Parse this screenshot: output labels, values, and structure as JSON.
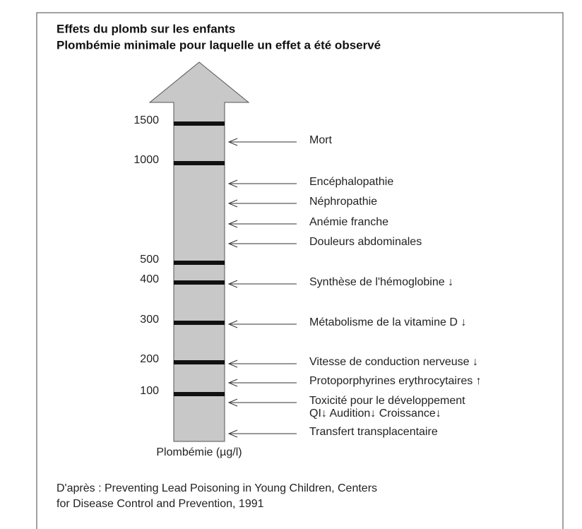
{
  "title": "Effets du plomb sur les enfants",
  "subtitle": "Plombémie minimale pour laquelle un effet a été observé",
  "scale_ticks": [
    1500,
    1000,
    500,
    400,
    300,
    200,
    100
  ],
  "axis_label": "Plombémie (µg/l)",
  "effects": [
    {
      "label": "Mort"
    },
    {
      "label": "Encéphalopathie"
    },
    {
      "label": "Néphropathie"
    },
    {
      "label": "Anémie franche"
    },
    {
      "label": "Douleurs abdominales"
    },
    {
      "label": "Synthèse de l'hémoglobine ↓"
    },
    {
      "label": "Métabolisme de la vitamine D ↓"
    },
    {
      "label": "Vitesse de conduction nerveuse ↓"
    },
    {
      "label": "Protoporphyrines erythrocytaires ↑"
    },
    {
      "label": "Toxicité pour le développement",
      "detail": "QI↓  Audition↓  Croissance↓"
    },
    {
      "label": "Transfert transplacentaire"
    }
  ],
  "source": [
    "D'après : Preventing Lead Poisoning in Young Children, Centers",
    "for Disease Control and Prevention, 1991"
  ]
}
